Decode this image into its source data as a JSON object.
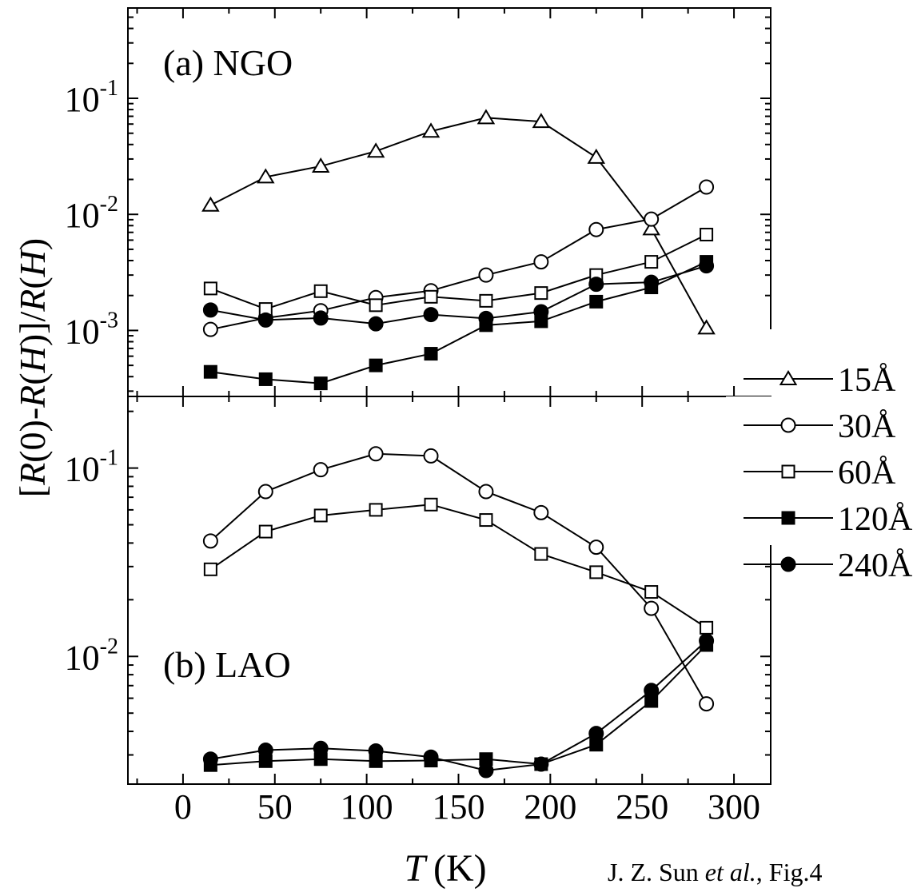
{
  "credit": {
    "authors": "J. Z. Sun",
    "etal": "et al.",
    "fig": ", Fig.4"
  },
  "axes": {
    "xlabel_var": "T",
    "xlabel_unit": "(K)",
    "ylabel_parts": [
      {
        "t": "[",
        "i": false
      },
      {
        "t": "R",
        "i": true
      },
      {
        "t": "(0)-",
        "i": false
      },
      {
        "t": "R",
        "i": true
      },
      {
        "t": "(",
        "i": false
      },
      {
        "t": "H",
        "i": true
      },
      {
        "t": ")]/",
        "i": false
      },
      {
        "t": "R",
        "i": true
      },
      {
        "t": "(",
        "i": false
      },
      {
        "t": "H",
        "i": true
      },
      {
        "t": ")",
        "i": false
      }
    ]
  },
  "legend": [
    {
      "label": "15Å",
      "marker": "triangle",
      "filled": false
    },
    {
      "label": "30Å",
      "marker": "circle",
      "filled": false
    },
    {
      "label": "60Å",
      "marker": "square",
      "filled": false
    },
    {
      "label": "120Å",
      "marker": "square",
      "filled": true
    },
    {
      "label": "240Å",
      "marker": "circle",
      "filled": true
    }
  ],
  "chart_data": [
    {
      "type": "line",
      "panel": "(a) NGO",
      "title": "(a) NGO",
      "xlabel": "T (K)",
      "ylabel": "[R(0)-R(H)]/R(H)",
      "xlim": [
        -30,
        320
      ],
      "ylim": [
        0.00027,
        0.6
      ],
      "yscale": "log",
      "xticks": [
        0,
        50,
        100,
        150,
        200,
        250,
        300
      ],
      "yticks": [
        {
          "value": 0.001,
          "base": "10",
          "exp": "-3"
        },
        {
          "value": 0.01,
          "base": "10",
          "exp": "-2"
        },
        {
          "value": 0.1,
          "base": "10",
          "exp": "-1"
        }
      ],
      "series": [
        {
          "name": "15Å",
          "marker": "triangle",
          "filled": false,
          "x": [
            15,
            45,
            75,
            105,
            135,
            165,
            195,
            225,
            255,
            285
          ],
          "values": [
            0.012,
            0.021,
            0.026,
            0.035,
            0.052,
            0.068,
            0.063,
            0.031,
            0.0075,
            0.00105
          ]
        },
        {
          "name": "30Å",
          "marker": "circle",
          "filled": false,
          "x": [
            15,
            45,
            75,
            105,
            135,
            165,
            195,
            225,
            255,
            285
          ],
          "values": [
            0.00102,
            0.00128,
            0.00148,
            0.00192,
            0.0022,
            0.003,
            0.0039,
            0.0074,
            0.0091,
            0.0172
          ]
        },
        {
          "name": "60Å",
          "marker": "square",
          "filled": false,
          "x": [
            15,
            45,
            75,
            105,
            135,
            165,
            195,
            225,
            255,
            285
          ],
          "values": [
            0.0023,
            0.00153,
            0.00218,
            0.00165,
            0.00195,
            0.0018,
            0.0021,
            0.003,
            0.0039,
            0.0067
          ]
        },
        {
          "name": "120Å",
          "marker": "square",
          "filled": true,
          "x": [
            15,
            45,
            75,
            105,
            135,
            165,
            195,
            225,
            255,
            285
          ],
          "values": [
            0.00044,
            0.00038,
            0.00035,
            0.0005,
            0.00063,
            0.00111,
            0.0012,
            0.00177,
            0.00235,
            0.0039
          ]
        },
        {
          "name": "240Å",
          "marker": "circle",
          "filled": true,
          "x": [
            15,
            45,
            75,
            105,
            135,
            165,
            195,
            225,
            255,
            285
          ],
          "values": [
            0.0015,
            0.00123,
            0.00128,
            0.00114,
            0.00137,
            0.00127,
            0.00145,
            0.0025,
            0.0026,
            0.0036
          ]
        }
      ]
    },
    {
      "type": "line",
      "panel": "(b) LAO",
      "title": "(b) LAO",
      "xlabel": "T (K)",
      "ylabel": "[R(0)-R(H)]/R(H)",
      "xlim": [
        -30,
        320
      ],
      "ylim": [
        0.0021,
        0.24
      ],
      "yscale": "log",
      "xticks": [
        0,
        50,
        100,
        150,
        200,
        250,
        300
      ],
      "yticks": [
        {
          "value": 0.01,
          "base": "10",
          "exp": "-2"
        },
        {
          "value": 0.1,
          "base": "10",
          "exp": "-1"
        }
      ],
      "series": [
        {
          "name": "30Å",
          "marker": "circle",
          "filled": false,
          "x": [
            15,
            45,
            75,
            105,
            135,
            165,
            195,
            225,
            255,
            285
          ],
          "values": [
            0.041,
            0.075,
            0.098,
            0.119,
            0.116,
            0.075,
            0.058,
            0.038,
            0.018,
            0.0056
          ]
        },
        {
          "name": "60Å",
          "marker": "square",
          "filled": false,
          "x": [
            15,
            45,
            75,
            105,
            135,
            165,
            195,
            225,
            255,
            285
          ],
          "values": [
            0.029,
            0.046,
            0.056,
            0.06,
            0.064,
            0.053,
            0.035,
            0.028,
            0.022,
            0.0142
          ]
        },
        {
          "name": "120Å",
          "marker": "square",
          "filled": true,
          "x": [
            15,
            45,
            75,
            105,
            135,
            165,
            195,
            225,
            255,
            285
          ],
          "values": [
            0.00265,
            0.00278,
            0.00285,
            0.00278,
            0.0028,
            0.00285,
            0.00268,
            0.0034,
            0.0058,
            0.0115
          ]
        },
        {
          "name": "240Å",
          "marker": "circle",
          "filled": true,
          "x": [
            15,
            45,
            75,
            105,
            135,
            165,
            195,
            225,
            255,
            285
          ],
          "values": [
            0.00285,
            0.00318,
            0.00325,
            0.00315,
            0.00292,
            0.00248,
            0.00268,
            0.0039,
            0.0066,
            0.0121
          ]
        }
      ]
    }
  ]
}
